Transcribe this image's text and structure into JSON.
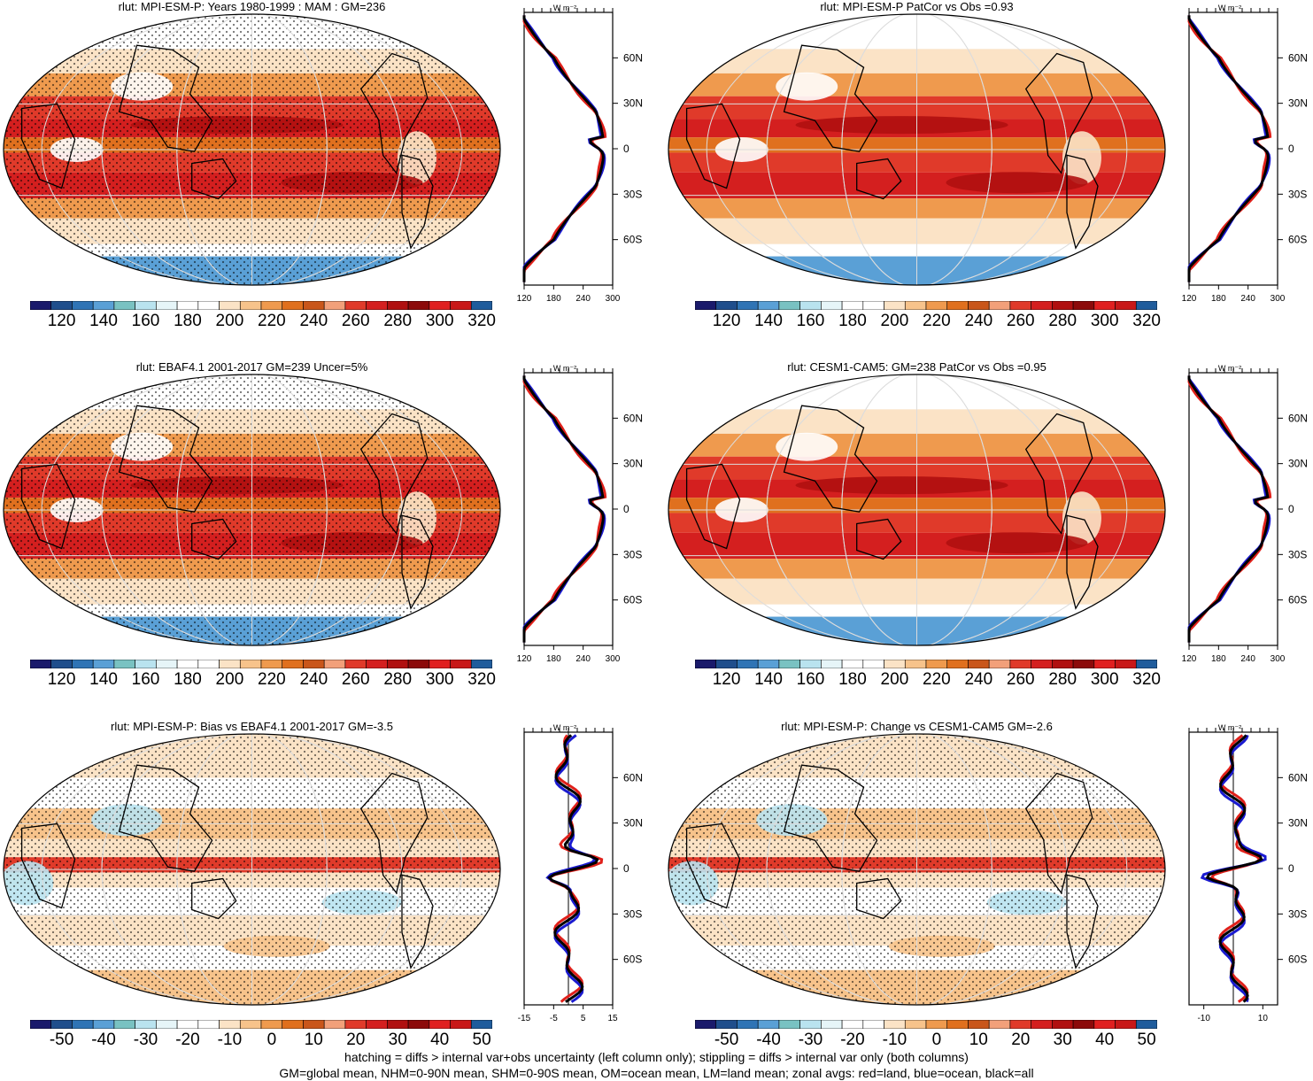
{
  "panels": [
    {
      "id": "p1",
      "title": "rlut: MPI-ESM-P: Years 1980-1999 : MAM : GM=236",
      "cbar": {
        "labels": [
          "120",
          "140",
          "160",
          "180",
          "200",
          "220",
          "240",
          "260",
          "280",
          "300",
          "320"
        ]
      },
      "zonal": {
        "unit": "W m⁻²",
        "xticks": [
          "120",
          "180",
          "240",
          "300"
        ],
        "xlim": [
          100,
          300
        ],
        "yticks": [
          "60N",
          "30N",
          "0",
          "30S",
          "60S"
        ],
        "kind": "abs"
      }
    },
    {
      "id": "p2",
      "title": "rlut: MPI-ESM-P PatCor vs Obs =0.93",
      "cbar": {
        "labels": [
          "120",
          "140",
          "160",
          "180",
          "200",
          "220",
          "240",
          "260",
          "280",
          "300",
          "320"
        ]
      },
      "zonal": {
        "unit": "W m⁻²",
        "xticks": [
          "120",
          "180",
          "240",
          "300"
        ],
        "xlim": [
          100,
          300
        ],
        "yticks": [
          "60N",
          "30N",
          "0",
          "30S",
          "60S"
        ],
        "kind": "abs"
      }
    },
    {
      "id": "p3",
      "title": "rlut: EBAF4.1 2001-2017 GM=239 Uncer=5%",
      "cbar": {
        "labels": [
          "120",
          "140",
          "160",
          "180",
          "200",
          "220",
          "240",
          "260",
          "280",
          "300",
          "320"
        ]
      },
      "zonal": {
        "unit": "W m⁻²",
        "xticks": [
          "120",
          "180",
          "240",
          "300"
        ],
        "xlim": [
          100,
          300
        ],
        "yticks": [
          "60N",
          "30N",
          "0",
          "30S",
          "60S"
        ],
        "kind": "abs"
      }
    },
    {
      "id": "p4",
      "title": "rlut: CESM1-CAM5: GM=238 PatCor vs Obs =0.95",
      "cbar": {
        "labels": [
          "120",
          "140",
          "160",
          "180",
          "200",
          "220",
          "240",
          "260",
          "280",
          "300",
          "320"
        ]
      },
      "zonal": {
        "unit": "W m⁻²",
        "xticks": [
          "120",
          "180",
          "240",
          "300"
        ],
        "xlim": [
          100,
          300
        ],
        "yticks": [
          "60N",
          "30N",
          "0",
          "30S",
          "60S"
        ],
        "kind": "abs"
      }
    },
    {
      "id": "p5",
      "title": "rlut: MPI-ESM-P: Bias vs EBAF4.1 2001-2017 GM=-3.5",
      "cbar": {
        "labels": [
          "-50",
          "-40",
          "-30",
          "-20",
          "-10",
          "0",
          "10",
          "20",
          "30",
          "40",
          "50"
        ]
      },
      "zonal": {
        "unit": "W m⁻²",
        "xticks": [
          "-15",
          "-5",
          "5",
          "15"
        ],
        "xlim": [
          -15,
          15
        ],
        "yticks": [
          "60N",
          "30N",
          "0",
          "30S",
          "60S"
        ],
        "kind": "diff"
      }
    },
    {
      "id": "p6",
      "title": "rlut: MPI-ESM-P: Change vs CESM1-CAM5 GM=-2.6",
      "cbar": {
        "labels": [
          "-50",
          "-40",
          "-30",
          "-20",
          "-10",
          "0",
          "10",
          "20",
          "30",
          "40",
          "50"
        ]
      },
      "zonal": {
        "unit": "W m⁻²",
        "xticks": [
          "-10",
          "10"
        ],
        "xlim": [
          -15,
          15
        ],
        "yticks": [
          "60N",
          "30N",
          "0",
          "30S",
          "60S"
        ],
        "kind": "diff"
      }
    }
  ],
  "palette": [
    "#1a1a6b",
    "#1f4e8c",
    "#2f74b5",
    "#5aa0d6",
    "#79c2c2",
    "#b9e3ef",
    "#e6f5f8",
    "#ffffff",
    "#ffffff",
    "#fbe3c6",
    "#f7c38b",
    "#ef9a4e",
    "#e0701e",
    "#c9561a",
    "#f2a07a",
    "#e03a2a",
    "#d41f1f",
    "#b01010",
    "#8c0a0a",
    "#e02020",
    "#c81818",
    "#1f5c9c"
  ],
  "diff_palette": [
    "#1a1a6b",
    "#1f4e8c",
    "#2f74b5",
    "#5aa0d6",
    "#79c2c2",
    "#b9e3ef",
    "#e6f5f8",
    "#ffffff",
    "#ffffff",
    "#fbe3c6",
    "#f7c38b",
    "#ef9a4e",
    "#e0701e",
    "#c9561a",
    "#f2a07a",
    "#e03a2a",
    "#d41f1f",
    "#b01010",
    "#8c0a0a",
    "#e02020",
    "#c81818",
    "#1f5c9c"
  ],
  "line_colors": {
    "land": "#e0201a",
    "ocean": "#1a1ad0",
    "all": "#000000"
  },
  "chart_data": [
    {
      "type": "heatmap",
      "title": "rlut: MPI-ESM-P: Years 1980-1999 : MAM : GM=236",
      "colorbar": [
        120,
        140,
        160,
        180,
        200,
        220,
        240,
        260,
        280,
        300,
        320
      ]
    },
    {
      "type": "heatmap",
      "title": "rlut: MPI-ESM-P PatCor vs Obs =0.93",
      "colorbar": [
        120,
        140,
        160,
        180,
        200,
        220,
        240,
        260,
        280,
        300,
        320
      ]
    },
    {
      "type": "heatmap",
      "title": "rlut: EBAF4.1 2001-2017 GM=239 Uncer=5%",
      "colorbar": [
        120,
        140,
        160,
        180,
        200,
        220,
        240,
        260,
        280,
        300,
        320
      ]
    },
    {
      "type": "heatmap",
      "title": "rlut: CESM1-CAM5: GM=238 PatCor vs Obs =0.95",
      "colorbar": [
        120,
        140,
        160,
        180,
        200,
        220,
        240,
        260,
        280,
        300,
        320
      ]
    },
    {
      "type": "heatmap",
      "title": "rlut: MPI-ESM-P: Bias vs EBAF4.1 2001-2017 GM=-3.5",
      "colorbar": [
        -50,
        -40,
        -30,
        -20,
        -10,
        0,
        10,
        20,
        30,
        40,
        50
      ]
    },
    {
      "type": "heatmap",
      "title": "rlut: MPI-ESM-P: Change vs CESM1-CAM5 GM=-2.6",
      "colorbar": [
        -50,
        -40,
        -30,
        -20,
        -10,
        0,
        10,
        20,
        30,
        40,
        50
      ]
    }
  ],
  "footer": {
    "line1": "hatching = diffs > internal var+obs uncertainty (left column only); stippling = diffs > internal var only (both columns)",
    "line2": "GM=global mean, NHM=0-90N mean, SHM=0-90S mean, OM=ocean mean, LM=land mean; zonal avgs: red=land, blue=ocean, black=all"
  }
}
